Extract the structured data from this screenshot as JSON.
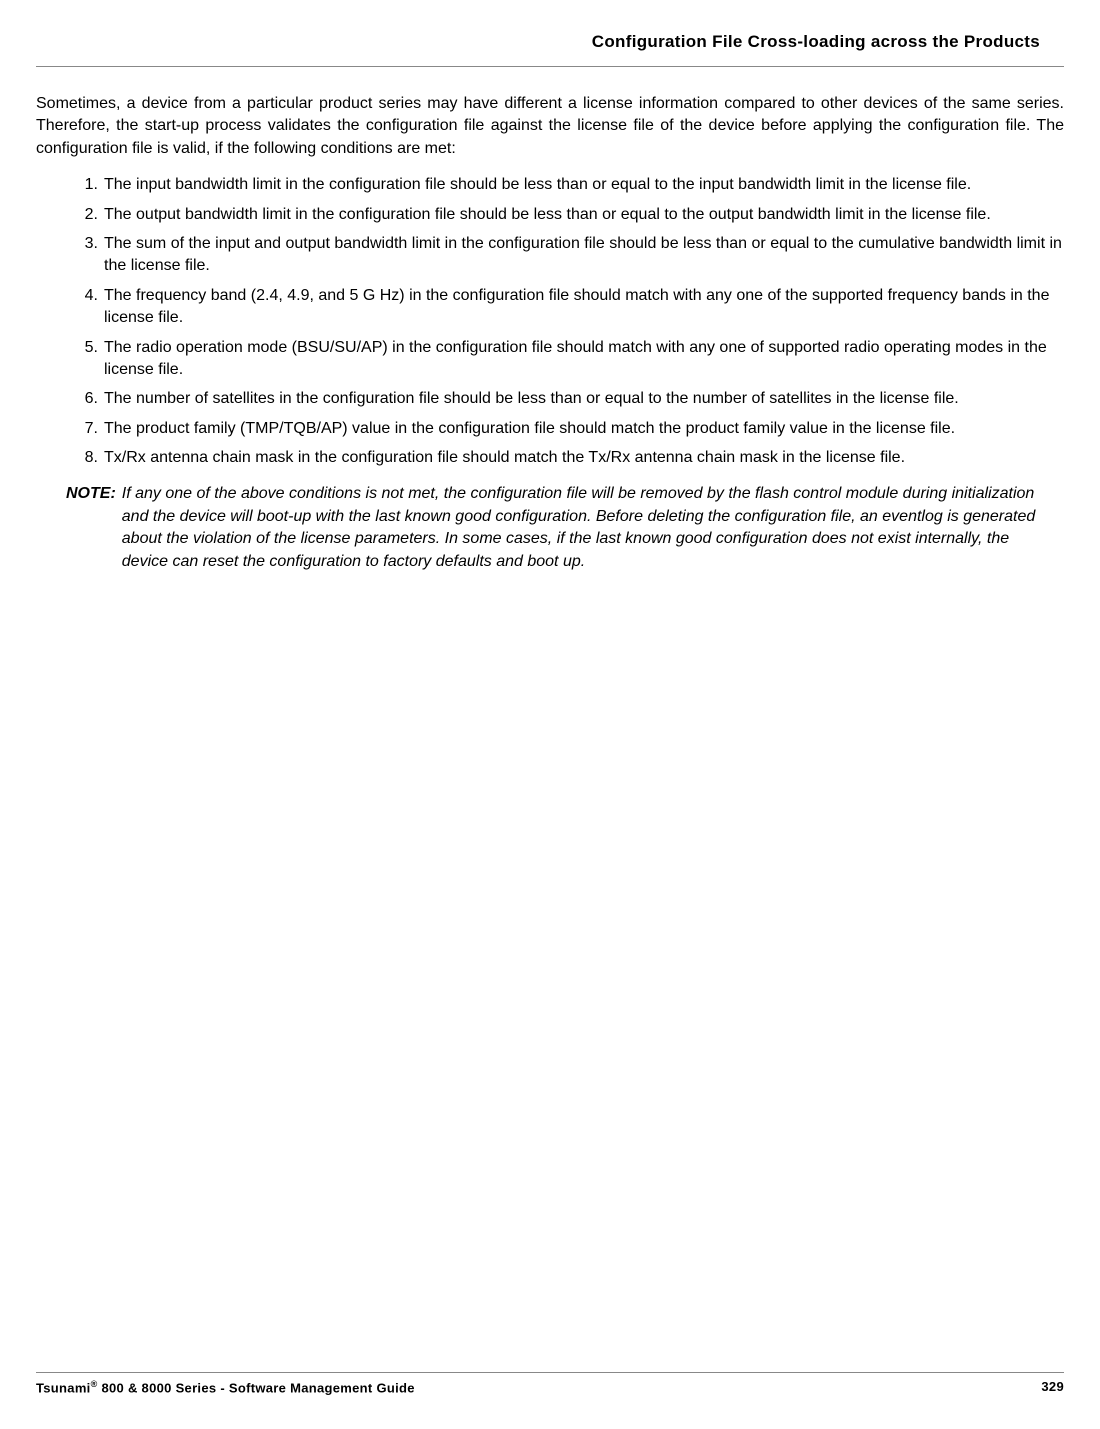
{
  "header": {
    "title": "Configuration File Cross-loading across the Products"
  },
  "intro": "Sometimes, a device from a particular product series may have different a license information compared to other devices of the same series. Therefore, the start-up process validates the configuration file against the license file of the device before applying the configuration file. The configuration file is valid, if the following conditions are met:",
  "conditions": [
    "The input bandwidth limit in the configuration file should be less than or equal to the input bandwidth limit in the license file.",
    "The output bandwidth limit in the configuration file should be less than or equal to the output bandwidth limit in the license file.",
    "The sum of the input and output bandwidth limit in the configuration file should be less than or equal to the cumulative bandwidth limit in the license file.",
    "The frequency band (2.4, 4.9, and 5 G Hz) in the configuration file should match with any one of the supported frequency bands in the license file.",
    "The radio operation mode (BSU/SU/AP) in the configuration file should match with any one of supported radio operating modes in the license file.",
    "The number of satellites in the configuration file should be less than or equal to the number of satellites in the license file.",
    "The product family (TMP/TQB/AP) value in the configuration file should match the product family value in the license file.",
    "Tx/Rx antenna chain mask in the configuration file should match the Tx/Rx antenna chain mask in the license file."
  ],
  "note": {
    "label": "NOTE:",
    "text": "If any one of the above conditions is not met, the configuration file will be removed by the flash control module during initialization and the device will boot-up with the last known good configuration. Before deleting the configuration file, an eventlog is generated about the violation of the license parameters. In some cases, if the last known good configuration does not exist internally, the device can reset the configuration to factory defaults and boot up."
  },
  "footer": {
    "guide_prefix": "Tsunami",
    "registered": "®",
    "guide_suffix": " 800 & 8000 Series - Software Management Guide",
    "page_number": "329"
  }
}
